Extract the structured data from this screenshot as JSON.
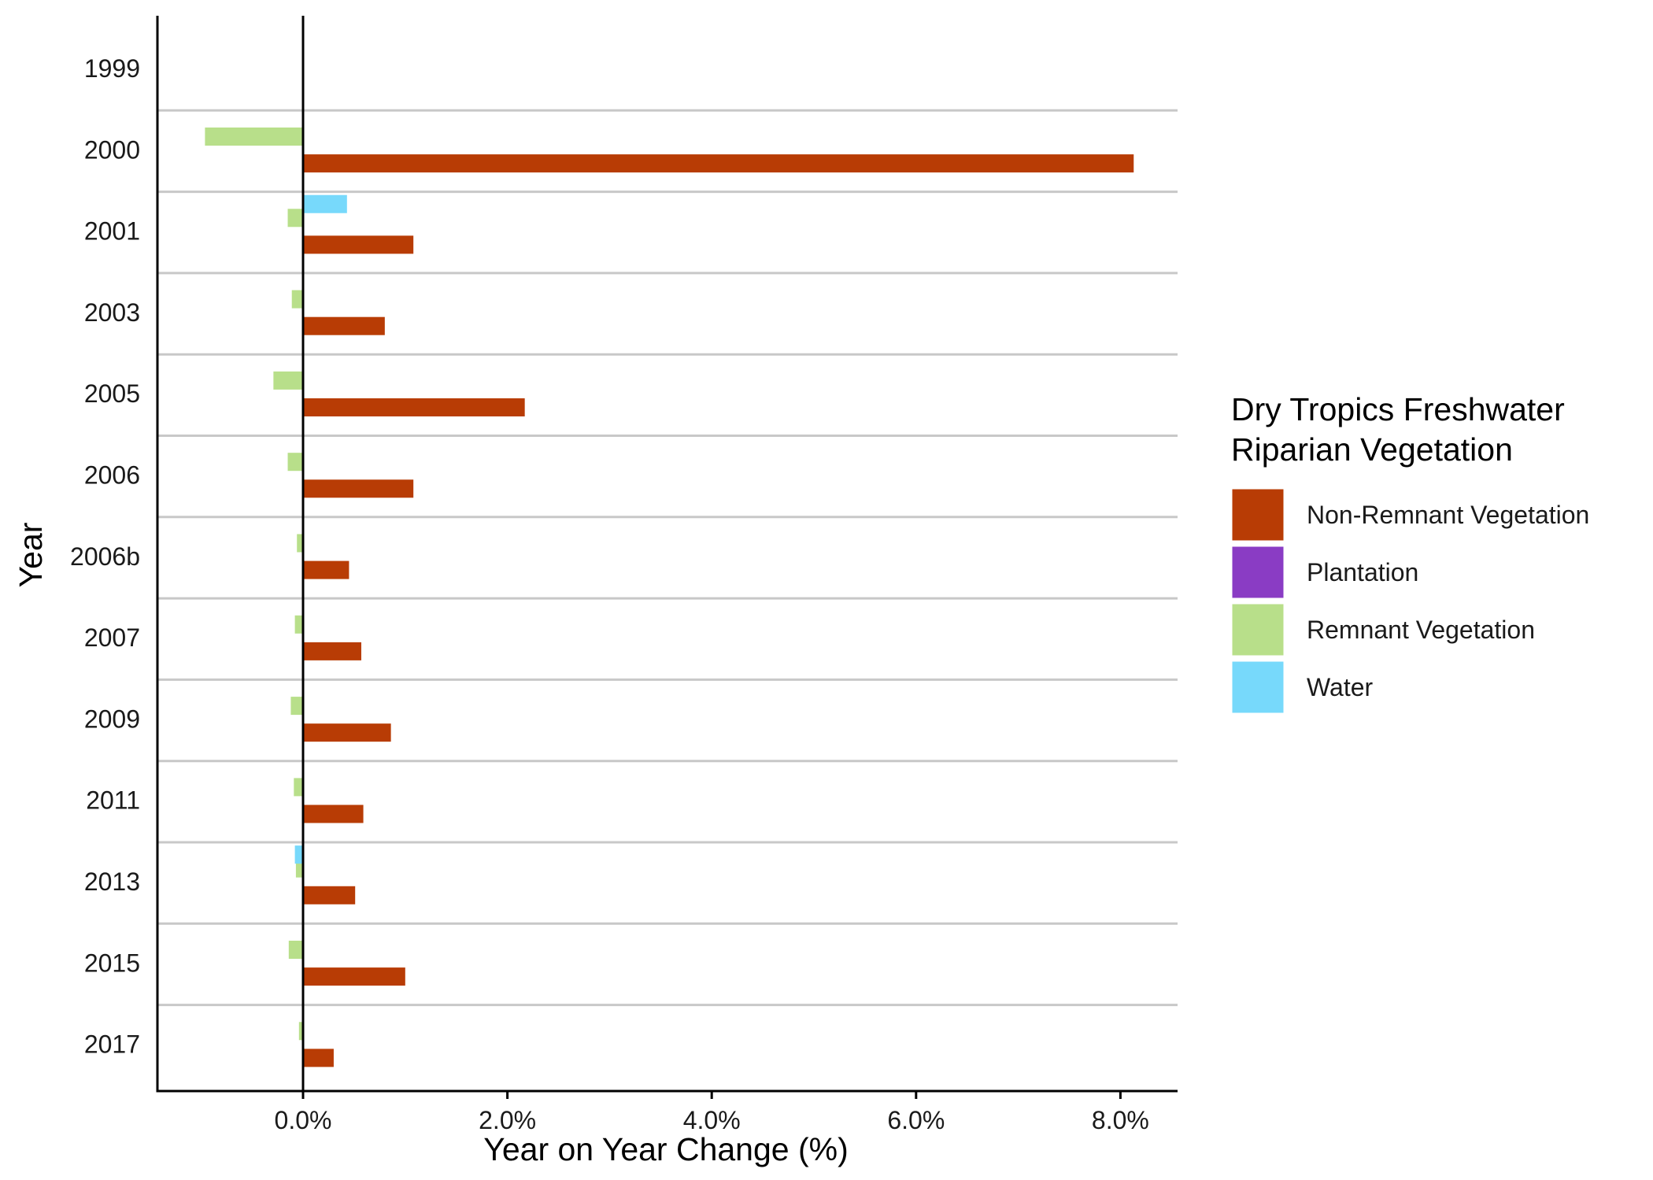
{
  "chart_data": {
    "type": "bar",
    "orientation": "horizontal",
    "title": "",
    "xlabel": "Year on Year Change (%)",
    "ylabel": "Year",
    "categories": [
      "1999",
      "2000",
      "2001",
      "2003",
      "2005",
      "2006",
      "2006b",
      "2007",
      "2009",
      "2011",
      "2013",
      "2015",
      "2017"
    ],
    "x_ticks": [
      0,
      2,
      4,
      6,
      8
    ],
    "x_tick_labels": [
      "0.0%",
      "2.0%",
      "4.0%",
      "6.0%",
      "8.0%"
    ],
    "xlim": [
      -1.42,
      8.57
    ],
    "legend": {
      "title_lines": [
        "Dry Tropics Freshwater",
        "Riparian Vegetation"
      ],
      "position": "right"
    },
    "series": [
      {
        "name": "Non-Remnant Vegetation",
        "color": "#B83C05",
        "values": [
          null,
          8.13,
          1.08,
          0.8,
          2.17,
          1.08,
          0.45,
          0.57,
          0.86,
          0.59,
          0.51,
          1.0,
          0.3
        ]
      },
      {
        "name": "Plantation",
        "color": "#8A3CC4",
        "values": [
          null,
          0,
          0,
          0,
          0,
          0,
          0,
          0,
          0,
          0,
          0,
          0,
          0
        ]
      },
      {
        "name": "Remnant Vegetation",
        "color": "#B8DF8A",
        "values": [
          null,
          -0.96,
          -0.15,
          -0.11,
          -0.29,
          -0.15,
          -0.06,
          -0.08,
          -0.12,
          -0.09,
          -0.07,
          -0.14,
          -0.04
        ]
      },
      {
        "name": "Water",
        "color": "#77D9FB",
        "values": [
          null,
          0,
          0.43,
          0,
          0,
          0,
          0,
          0,
          0,
          0,
          -0.08,
          0,
          0
        ]
      }
    ],
    "grid": {
      "horizontal_separators": true,
      "vertical": false
    }
  }
}
